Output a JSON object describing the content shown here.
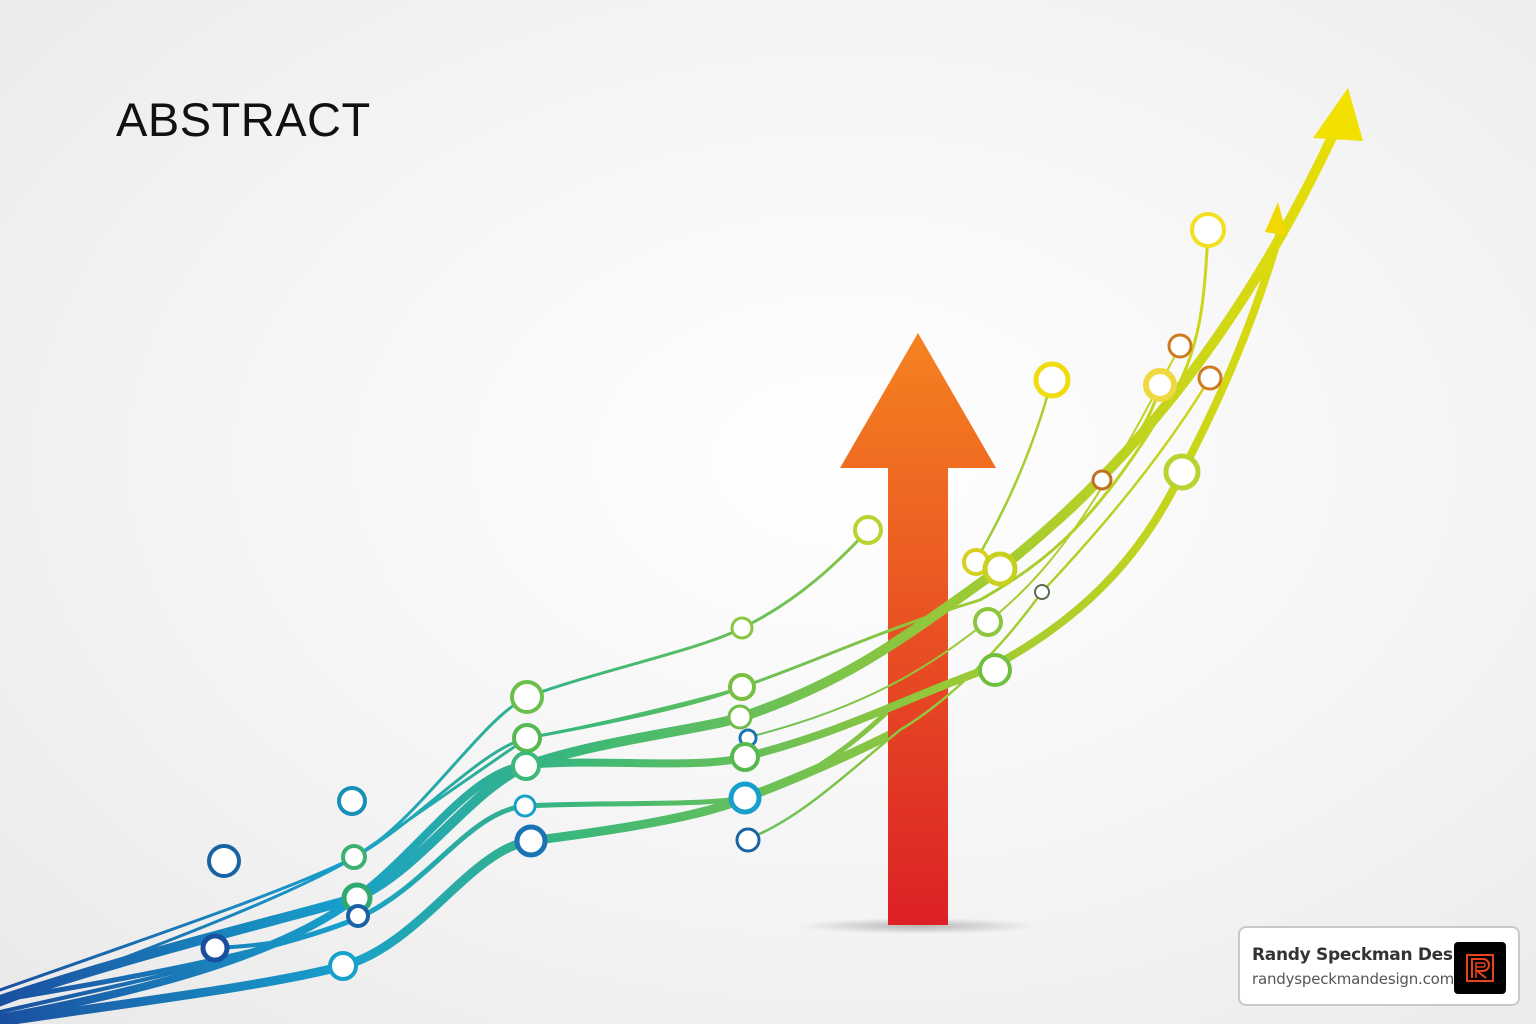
{
  "heading": "ABSTRACT",
  "badge": {
    "name": "Randy Speckman Design",
    "url": "randyspeckmandesign.com",
    "logo_letter": "R",
    "logo_color": "#e8431f"
  },
  "colors": {
    "line_gradient": [
      "#1a4fa0",
      "#18a0cc",
      "#3cb878",
      "#8cc63f",
      "#f2e000"
    ],
    "arrow_top": "#f58220",
    "arrow_bottom": "#dc2026"
  }
}
